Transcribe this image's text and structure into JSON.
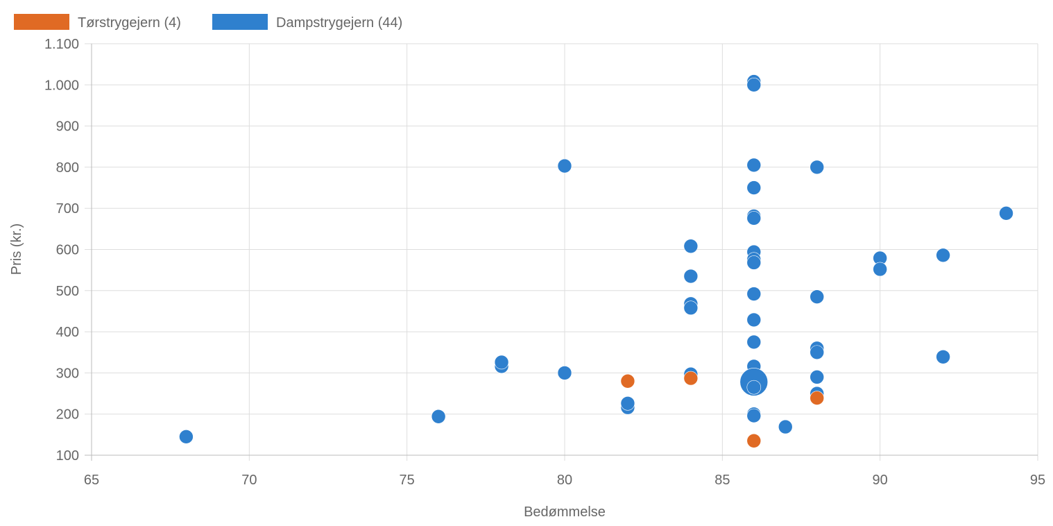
{
  "chart_data": {
    "type": "scatter",
    "xlabel": "Bedømmelse",
    "ylabel": "Pris (kr.)",
    "xlim": [
      65,
      95
    ],
    "ylim": [
      100,
      1100
    ],
    "x_ticks": [
      "65",
      "70",
      "75",
      "80",
      "85",
      "90",
      "95"
    ],
    "y_ticks": [
      "100",
      "200",
      "300",
      "400",
      "500",
      "600",
      "700",
      "800",
      "900",
      "1.000",
      "1.100"
    ],
    "grid": true,
    "legend_position": "top-left",
    "series": [
      {
        "name": "Tørstrygejern (4)",
        "color": "#E06A24",
        "points": [
          {
            "x": 82,
            "y": 280
          },
          {
            "x": 84,
            "y": 287
          },
          {
            "x": 86,
            "y": 135
          },
          {
            "x": 88,
            "y": 239
          }
        ]
      },
      {
        "name": "Dampstrygejern (44)",
        "color": "#2F80CE",
        "points": [
          {
            "x": 68,
            "y": 145
          },
          {
            "x": 76,
            "y": 194
          },
          {
            "x": 78,
            "y": 316
          },
          {
            "x": 78,
            "y": 326
          },
          {
            "x": 80,
            "y": 803
          },
          {
            "x": 80,
            "y": 300
          },
          {
            "x": 82,
            "y": 216
          },
          {
            "x": 82,
            "y": 226
          },
          {
            "x": 84,
            "y": 608
          },
          {
            "x": 84,
            "y": 535
          },
          {
            "x": 84,
            "y": 468
          },
          {
            "x": 84,
            "y": 458
          },
          {
            "x": 84,
            "y": 297
          },
          {
            "x": 86,
            "y": 1008
          },
          {
            "x": 86,
            "y": 1000
          },
          {
            "x": 86,
            "y": 805
          },
          {
            "x": 86,
            "y": 750
          },
          {
            "x": 86,
            "y": 681
          },
          {
            "x": 86,
            "y": 676
          },
          {
            "x": 86,
            "y": 594
          },
          {
            "x": 86,
            "y": 576
          },
          {
            "x": 86,
            "y": 568
          },
          {
            "x": 86,
            "y": 492
          },
          {
            "x": 86,
            "y": 429
          },
          {
            "x": 86,
            "y": 375
          },
          {
            "x": 86,
            "y": 316
          },
          {
            "x": 86,
            "y": 278,
            "r": 20
          },
          {
            "x": 86,
            "y": 265
          },
          {
            "x": 86,
            "y": 200
          },
          {
            "x": 86,
            "y": 196
          },
          {
            "x": 87,
            "y": 169
          },
          {
            "x": 88,
            "y": 800
          },
          {
            "x": 88,
            "y": 485
          },
          {
            "x": 88,
            "y": 360
          },
          {
            "x": 88,
            "y": 350
          },
          {
            "x": 88,
            "y": 290
          },
          {
            "x": 88,
            "y": 250
          },
          {
            "x": 90,
            "y": 579
          },
          {
            "x": 90,
            "y": 552
          },
          {
            "x": 92,
            "y": 586
          },
          {
            "x": 92,
            "y": 339
          },
          {
            "x": 94,
            "y": 688
          }
        ]
      }
    ]
  }
}
